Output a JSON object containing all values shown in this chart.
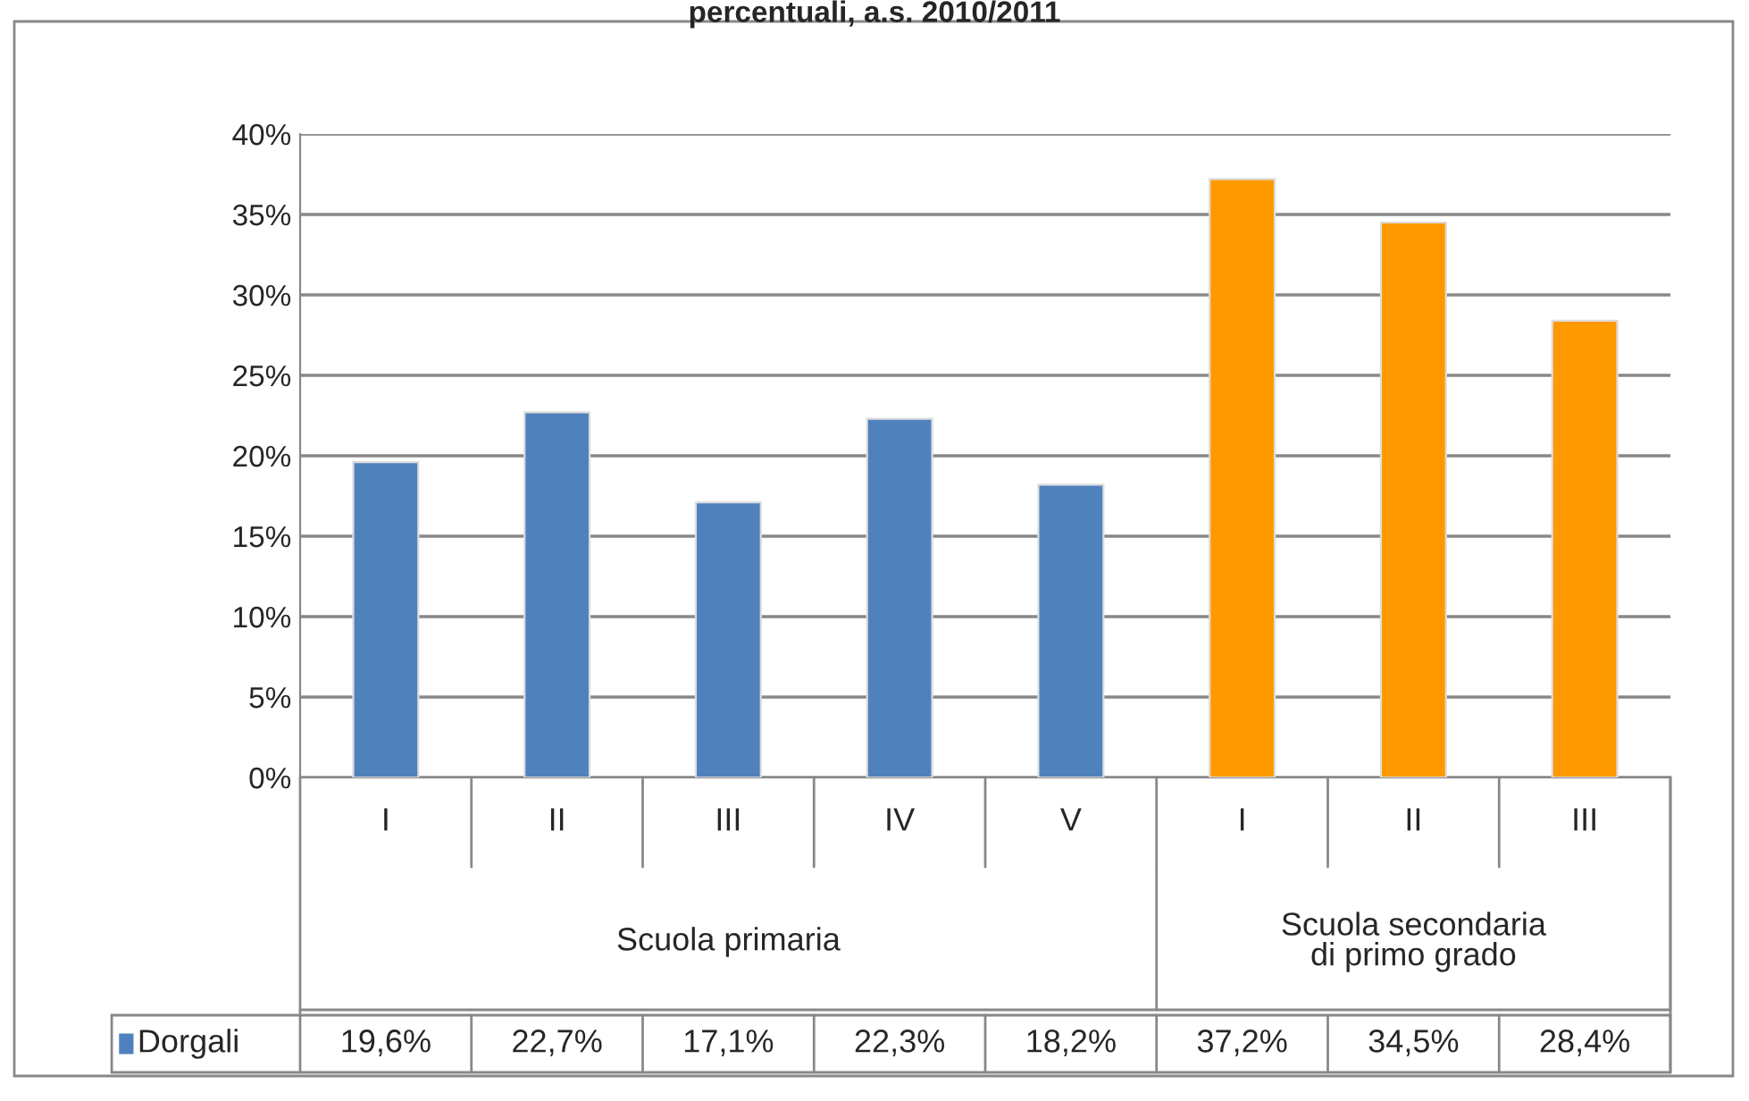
{
  "chart_data": {
    "type": "bar",
    "title": "percentuali, a.s. 2010/2011",
    "categories": [
      "I",
      "II",
      "III",
      "IV",
      "V",
      "I",
      "II",
      "III"
    ],
    "series": [
      {
        "name": "Dorgali",
        "color": "#4f81bd",
        "colors": [
          "#4f81bd",
          "#4f81bd",
          "#4f81bd",
          "#4f81bd",
          "#4f81bd",
          "#ff9900",
          "#ff9900",
          "#ff9900"
        ],
        "values": [
          19.6,
          22.7,
          17.1,
          22.3,
          18.2,
          37.2,
          34.5,
          28.4
        ],
        "value_labels": [
          "19,6%",
          "22,7%",
          "17,1%",
          "22,3%",
          "18,2%",
          "37,2%",
          "34,5%",
          "28,4%"
        ]
      }
    ],
    "annotations": [
      "Scuola primaria",
      "Scuola secondaria\ndi primo grado"
    ],
    "ylim": [
      0,
      40
    ],
    "yticks": [
      {
        "value": 0,
        "label": "0%"
      },
      {
        "value": 5,
        "label": "5%"
      },
      {
        "value": 10,
        "label": "10%"
      },
      {
        "value": 15,
        "label": "15%"
      },
      {
        "value": 20,
        "label": "20%"
      },
      {
        "value": 25,
        "label": "25%"
      },
      {
        "value": 30,
        "label": "30%"
      },
      {
        "value": 35,
        "label": "35%"
      },
      {
        "value": 40,
        "label": "40%"
      }
    ],
    "grid": "y",
    "legend": "bottom left",
    "tick_labels": "y"
  }
}
